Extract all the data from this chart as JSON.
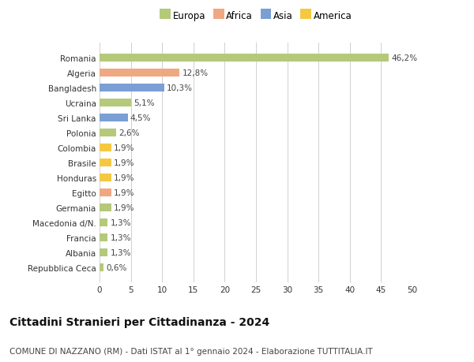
{
  "categories": [
    "Repubblica Ceca",
    "Albania",
    "Francia",
    "Macedonia d/N.",
    "Germania",
    "Egitto",
    "Honduras",
    "Brasile",
    "Colombia",
    "Polonia",
    "Sri Lanka",
    "Ucraina",
    "Bangladesh",
    "Algeria",
    "Romania"
  ],
  "values": [
    0.6,
    1.3,
    1.3,
    1.3,
    1.9,
    1.9,
    1.9,
    1.9,
    1.9,
    2.6,
    4.5,
    5.1,
    10.3,
    12.8,
    46.2
  ],
  "colors": [
    "#b5c97a",
    "#b5c97a",
    "#b5c97a",
    "#b5c97a",
    "#b5c97a",
    "#f0a882",
    "#f5c842",
    "#f5c842",
    "#f5c842",
    "#b5c97a",
    "#7b9fd4",
    "#b5c97a",
    "#7b9fd4",
    "#f0a882",
    "#b5c97a"
  ],
  "labels": [
    "0,6%",
    "1,3%",
    "1,3%",
    "1,3%",
    "1,9%",
    "1,9%",
    "1,9%",
    "1,9%",
    "1,9%",
    "2,6%",
    "4,5%",
    "5,1%",
    "10,3%",
    "12,8%",
    "46,2%"
  ],
  "legend": [
    {
      "label": "Europa",
      "color": "#b5c97a"
    },
    {
      "label": "Africa",
      "color": "#f0a882"
    },
    {
      "label": "Asia",
      "color": "#7b9fd4"
    },
    {
      "label": "America",
      "color": "#f5c842"
    }
  ],
  "title": "Cittadini Stranieri per Cittadinanza - 2024",
  "subtitle": "COMUNE DI NAZZANO (RM) - Dati ISTAT al 1° gennaio 2024 - Elaborazione TUTTITALIA.IT",
  "xlim": [
    0,
    50
  ],
  "xticks": [
    0,
    5,
    10,
    15,
    20,
    25,
    30,
    35,
    40,
    45,
    50
  ],
  "bg_color": "#ffffff",
  "grid_color": "#d0d0d0",
  "bar_height": 0.55,
  "title_fontsize": 10,
  "subtitle_fontsize": 7.5,
  "label_fontsize": 7.5,
  "tick_fontsize": 7.5,
  "legend_fontsize": 8.5
}
